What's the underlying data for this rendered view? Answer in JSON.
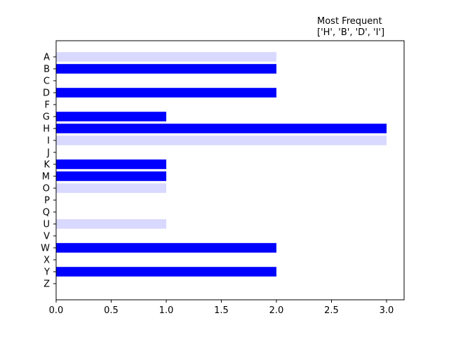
{
  "chart_data": {
    "type": "bar",
    "orientation": "horizontal",
    "title_lines": [
      "Most Frequent",
      "['H', 'B', 'D', 'I']"
    ],
    "title_position": "top-right",
    "xlabel": "",
    "ylabel": "",
    "xlim": [
      0,
      3.15
    ],
    "xticks": [
      "0.0",
      "0.5",
      "1.0",
      "1.5",
      "2.0",
      "2.5",
      "3.0"
    ],
    "xtick_values": [
      0,
      0.5,
      1.0,
      1.5,
      2.0,
      2.5,
      3.0
    ],
    "grid": false,
    "categories": [
      "A",
      "B",
      "C",
      "D",
      "F",
      "G",
      "H",
      "I",
      "J",
      "K",
      "M",
      "O",
      "P",
      "Q",
      "U",
      "V",
      "W",
      "X",
      "Y",
      "Z"
    ],
    "values": [
      2,
      2,
      0,
      2,
      0,
      1,
      3,
      3,
      0,
      1,
      1,
      1,
      0,
      0,
      1,
      0,
      2,
      0,
      2,
      0
    ],
    "bar_colors": [
      "light",
      "dark",
      "dark",
      "dark",
      "dark",
      "dark",
      "dark",
      "light",
      "dark",
      "dark",
      "dark",
      "light",
      "dark",
      "dark",
      "light",
      "dark",
      "dark",
      "dark",
      "dark",
      "dark"
    ],
    "colors": {
      "dark": "#0000ff",
      "light": "#d9d9ff"
    }
  }
}
